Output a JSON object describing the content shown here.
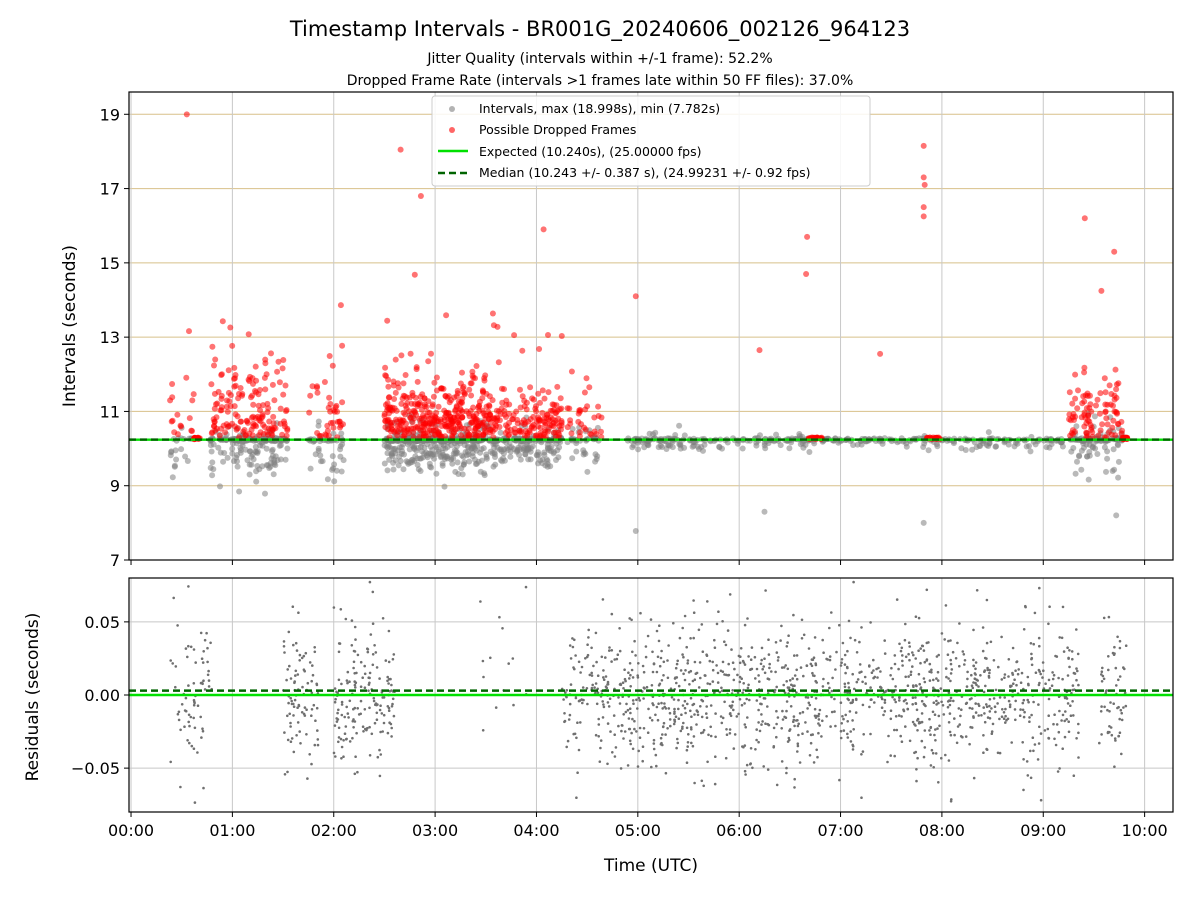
{
  "chart_data": [
    {
      "type": "scatter",
      "panel": "top",
      "title": "Timestamp Intervals - BR001G_20240606_002126_964123",
      "subtitles": [
        "Jitter Quality (intervals within +/-1 frame): 52.2%",
        "Dropped Frame Rate (intervals >1 frames late within 50 FF files): 37.0%"
      ],
      "ylabel": "Intervals (seconds)",
      "xlim_hours": [
        -0.02,
        10.28
      ],
      "ylim": [
        7,
        19.6
      ],
      "y_ticks": [
        "7",
        "9",
        "11",
        "13",
        "15",
        "17",
        "19"
      ],
      "y_tick_values": [
        7,
        9,
        11,
        13,
        15,
        17,
        19
      ],
      "grid": true,
      "legend_position": "top-center",
      "legend": [
        "Intervals, max (18.998s), min (7.782s)",
        "Possible Dropped Frames",
        "Expected (10.240s), (25.00000 fps)",
        "Median (10.243 +/- 0.387 s), (24.99231 +/- 0.92 fps)"
      ],
      "expected": 10.24,
      "median": 10.243,
      "colors": {
        "normal": "#808080",
        "dropped": "#ff0000",
        "expected": "#00e000",
        "median": "#006400",
        "hgrid": "#d8c08a"
      },
      "dropped_highlights": [
        {
          "x": 0.55,
          "y": 18.998
        },
        {
          "x": 2.66,
          "y": 18.05
        },
        {
          "x": 2.86,
          "y": 16.8
        },
        {
          "x": 7.82,
          "y": 18.15
        },
        {
          "x": 7.82,
          "y": 17.3
        },
        {
          "x": 7.83,
          "y": 17.1
        },
        {
          "x": 7.82,
          "y": 16.5
        },
        {
          "x": 7.82,
          "y": 16.25
        },
        {
          "x": 9.41,
          "y": 16.2
        },
        {
          "x": 9.7,
          "y": 15.3
        },
        {
          "x": 6.67,
          "y": 15.7
        },
        {
          "x": 6.66,
          "y": 14.7
        },
        {
          "x": 4.07,
          "y": 15.9
        },
        {
          "x": 4.98,
          "y": 14.1
        },
        {
          "x": 6.2,
          "y": 12.65
        },
        {
          "x": 7.39,
          "y": 12.55
        }
      ],
      "normal_lows": [
        {
          "x": 4.98,
          "y": 7.782
        },
        {
          "x": 6.25,
          "y": 8.3
        },
        {
          "x": 7.82,
          "y": 8.0
        },
        {
          "x": 9.72,
          "y": 8.2
        }
      ]
    },
    {
      "type": "scatter",
      "panel": "bottom",
      "xlabel": "Time (UTC)",
      "ylabel": "Residuals (seconds)",
      "x_ticks": [
        "00:00",
        "01:00",
        "02:00",
        "03:00",
        "04:00",
        "05:00",
        "06:00",
        "07:00",
        "08:00",
        "09:00",
        "10:00"
      ],
      "x_tick_values": [
        0,
        1,
        2,
        3,
        4,
        5,
        6,
        7,
        8,
        9,
        10
      ],
      "y_ticks": [
        "−0.05",
        "0.00",
        "0.05"
      ],
      "y_tick_values": [
        -0.05,
        0.0,
        0.05
      ],
      "ylim": [
        -0.08,
        0.08
      ],
      "zero_line": 0.0,
      "median_residual": 0.003,
      "grid": true
    }
  ]
}
